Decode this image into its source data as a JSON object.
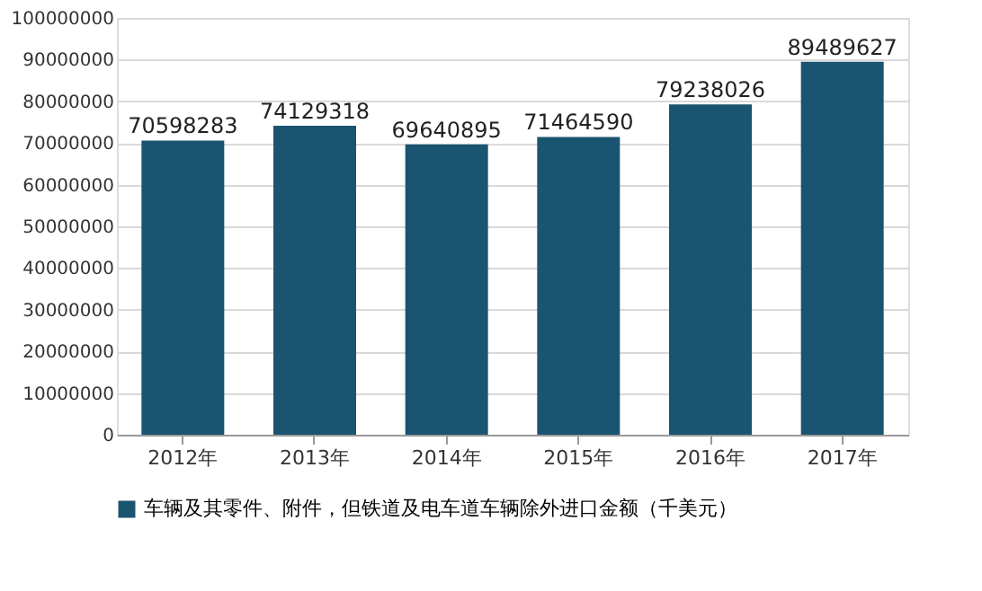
{
  "chart_data": {
    "type": "bar",
    "categories": [
      "2012年",
      "2013年",
      "2014年",
      "2015年",
      "2016年",
      "2017年"
    ],
    "series": [
      {
        "name": "车辆及其零件、附件，但铁道及电车道车辆除外进口金额（千美元）",
        "color": "#1b5470",
        "values": [
          70598283,
          74129318,
          69640895,
          71464590,
          79238026,
          89489627
        ]
      }
    ],
    "ylim": [
      0,
      100000000
    ],
    "yticks": [
      0,
      10000000,
      20000000,
      30000000,
      40000000,
      50000000,
      60000000,
      70000000,
      80000000,
      90000000,
      100000000
    ],
    "grid": "y",
    "legend": "bottom",
    "data_labels": true
  }
}
